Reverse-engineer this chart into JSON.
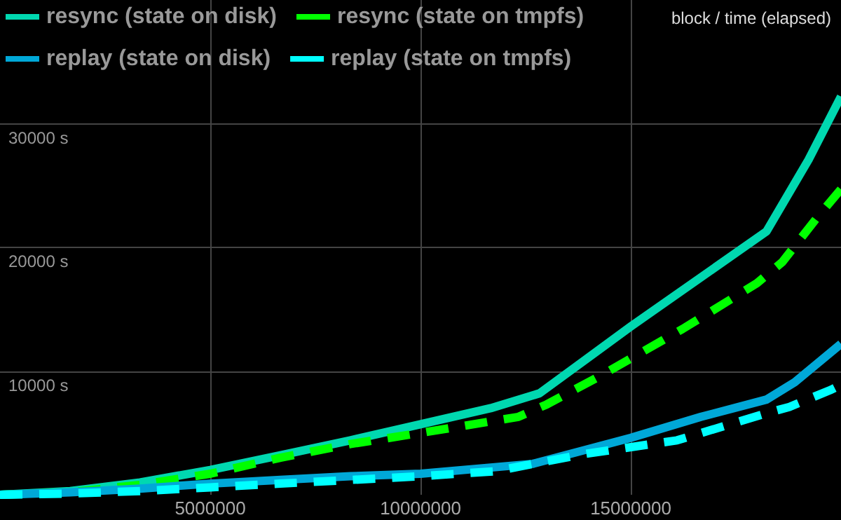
{
  "chart_data": {
    "type": "line",
    "title": "block / time (elapsed)",
    "xlim": [
      0,
      20000000
    ],
    "xticks": [
      5000000,
      10000000,
      15000000
    ],
    "ylim": [
      0,
      40000
    ],
    "yticks": [
      {
        "value": 10000,
        "label": "10000 s"
      },
      {
        "value": 20000,
        "label": "20000 s"
      },
      {
        "value": 30000,
        "label": "30000 s"
      }
    ],
    "grid": true,
    "legend": "top left",
    "marker": "none",
    "series": [
      {
        "name": "resync (state on disk)",
        "color": "#00d8b0",
        "line_style": "solid",
        "x": [
          0,
          1670000,
          3330000,
          5000000,
          6670000,
          8330000,
          10000000,
          11670000,
          12830000,
          15000000,
          18230000,
          19230000,
          20000000
        ],
        "values": [
          0,
          300,
          1000,
          2000,
          3200,
          4400,
          5700,
          7000,
          8200,
          13600,
          21300,
          27100,
          32200
        ]
      },
      {
        "name": "resync (state on tmpfs)",
        "color": "#00ff00",
        "line_style": "dashed",
        "x": [
          0,
          1670000,
          3330000,
          5000000,
          6670000,
          8330000,
          10000000,
          12330000,
          13000000,
          14270000,
          16230000,
          18000000,
          18600000,
          19430000,
          20000000
        ],
        "values": [
          0,
          200,
          800,
          1700,
          3000,
          4100,
          5000,
          6300,
          7300,
          9600,
          13400,
          17100,
          18800,
          22400,
          24700
        ]
      },
      {
        "name": "replay (state on disk)",
        "color": "#00a8d8",
        "line_style": "solid",
        "x": [
          0,
          1670000,
          3330000,
          5000000,
          6670000,
          8330000,
          10000000,
          12670000,
          15000000,
          16670000,
          18230000,
          18900000,
          20000000
        ],
        "values": [
          0,
          200,
          500,
          900,
          1200,
          1500,
          1700,
          2500,
          4600,
          6300,
          7700,
          9100,
          12200
        ]
      },
      {
        "name": "replay (state on tmpfs)",
        "color": "#00ffff",
        "line_style": "dashed",
        "x": [
          0,
          1670000,
          3330000,
          5000000,
          6670000,
          8330000,
          10000000,
          11770000,
          13900000,
          16100000,
          18230000,
          18770000,
          19770000,
          20000000
        ],
        "values": [
          0,
          100,
          300,
          600,
          900,
          1200,
          1500,
          1900,
          3300,
          4400,
          6600,
          7100,
          8500,
          8900
        ]
      }
    ]
  }
}
